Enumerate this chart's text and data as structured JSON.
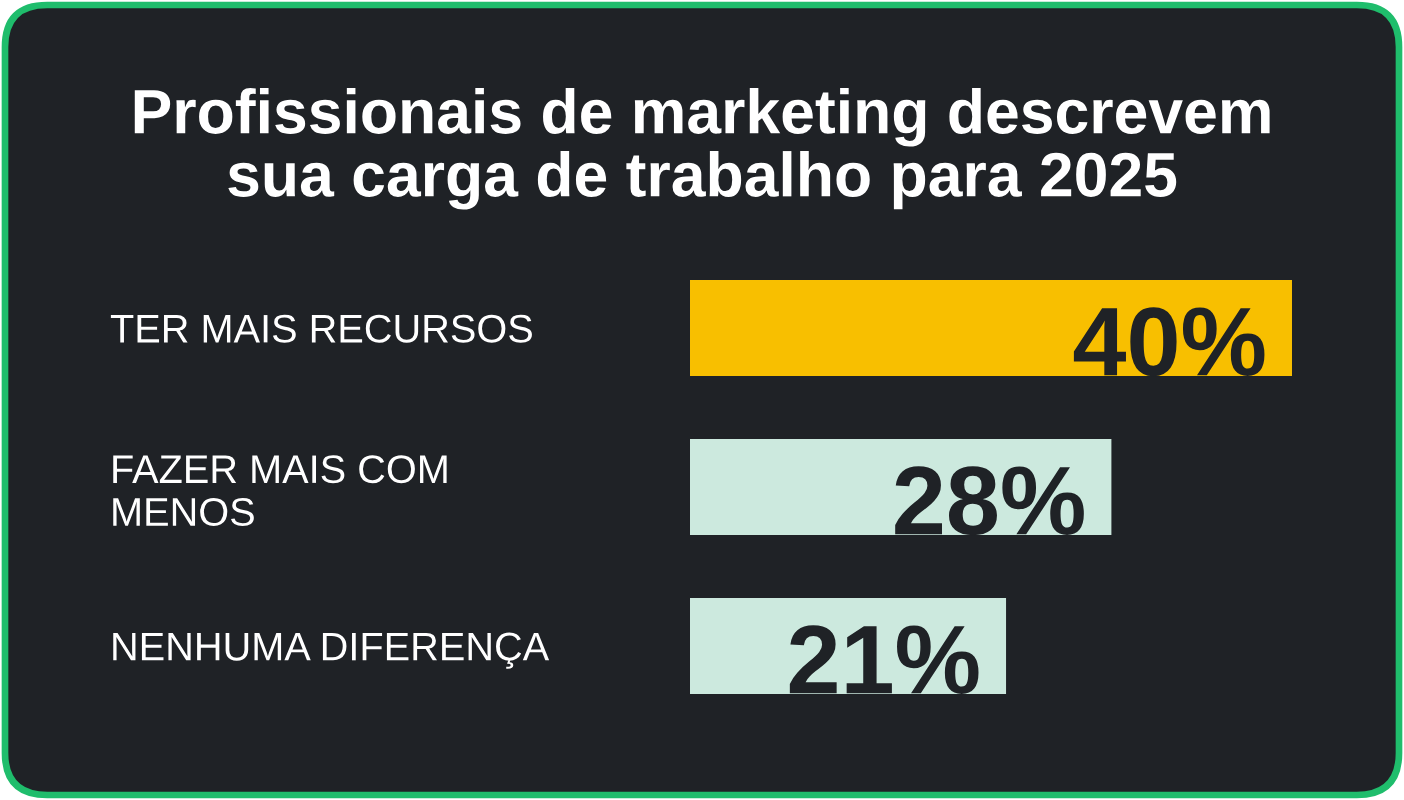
{
  "chart_data": {
    "type": "bar",
    "orientation": "horizontal",
    "title": "Profissionais de marketing descrevem\nsua carga de trabalho para 2025",
    "categories": [
      "TER MAIS RECURSOS",
      "FAZER MAIS COM\nMENOS",
      "NENHUMA DIFERENÇA"
    ],
    "values": [
      40,
      28,
      21
    ],
    "colors": [
      "#f8bf00",
      "#cce9de",
      "#cce9de"
    ],
    "value_labels": [
      "40%",
      "28%",
      "21%"
    ],
    "tick_labels": "y"
  }
}
